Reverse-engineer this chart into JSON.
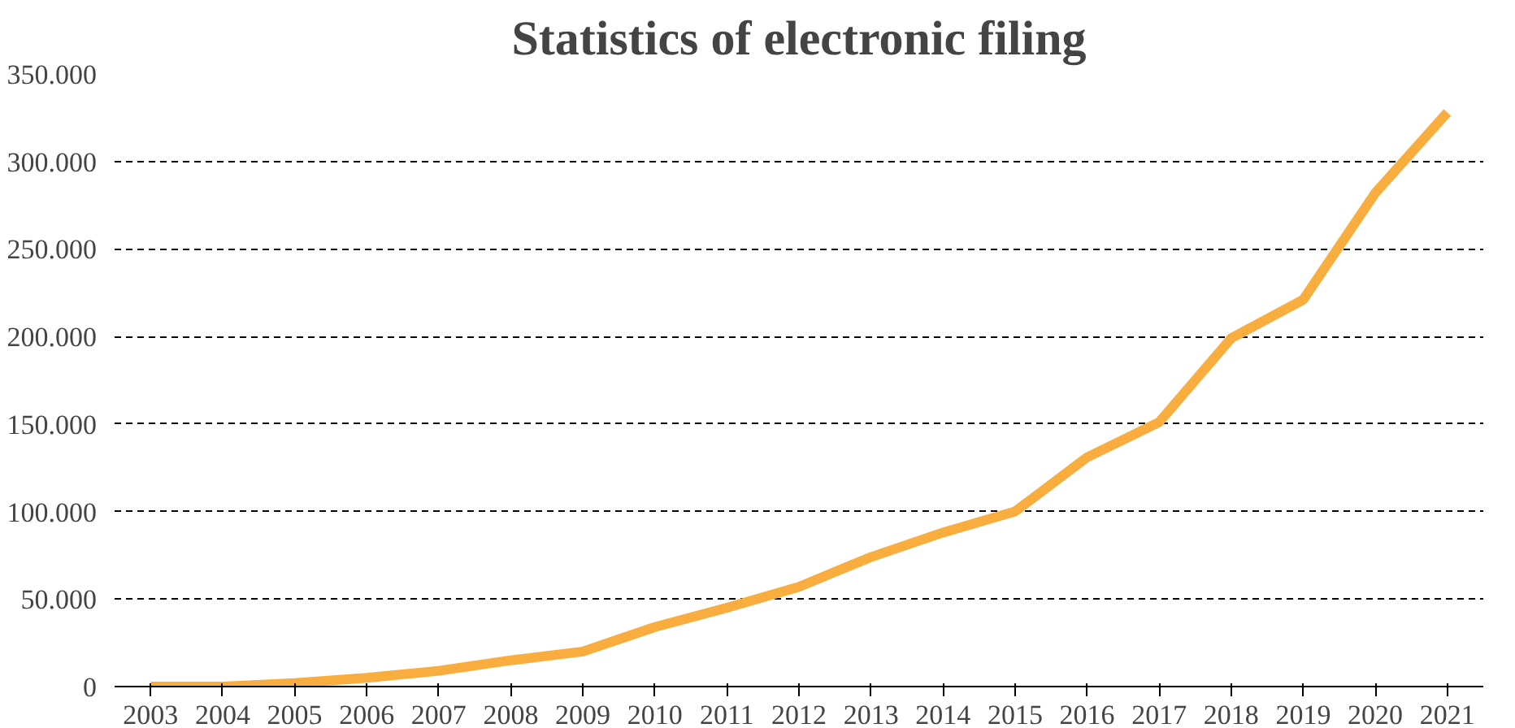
{
  "chart_data": {
    "type": "line",
    "title": "Statistics of electronic filing",
    "categories": [
      "2003",
      "2004",
      "2005",
      "2006",
      "2007",
      "2008",
      "2009",
      "2010",
      "2011",
      "2012",
      "2013",
      "2014",
      "2015",
      "2016",
      "2017",
      "2018",
      "2019",
      "2020",
      "2021"
    ],
    "series": [
      {
        "color": "#f9ad3f",
        "values": [
          0,
          0,
          2000,
          5000,
          9000,
          15000,
          20000,
          34000,
          45000,
          57000,
          74000,
          88000,
          100000,
          131000,
          151000,
          199000,
          221000,
          282000,
          328000
        ]
      }
    ],
    "ylim": [
      0,
      350000
    ],
    "yticks": [
      {
        "value": 0,
        "label": "0"
      },
      {
        "value": 50000,
        "label": "50.000"
      },
      {
        "value": 100000,
        "label": "100.000"
      },
      {
        "value": 150000,
        "label": "150.000"
      },
      {
        "value": 200000,
        "label": "200.000"
      },
      {
        "value": 250000,
        "label": "250.000"
      },
      {
        "value": 300000,
        "label": "300.000"
      },
      {
        "value": 350000,
        "label": "350.000"
      }
    ],
    "grid": "y",
    "marker": "none",
    "line_style": "solid"
  }
}
